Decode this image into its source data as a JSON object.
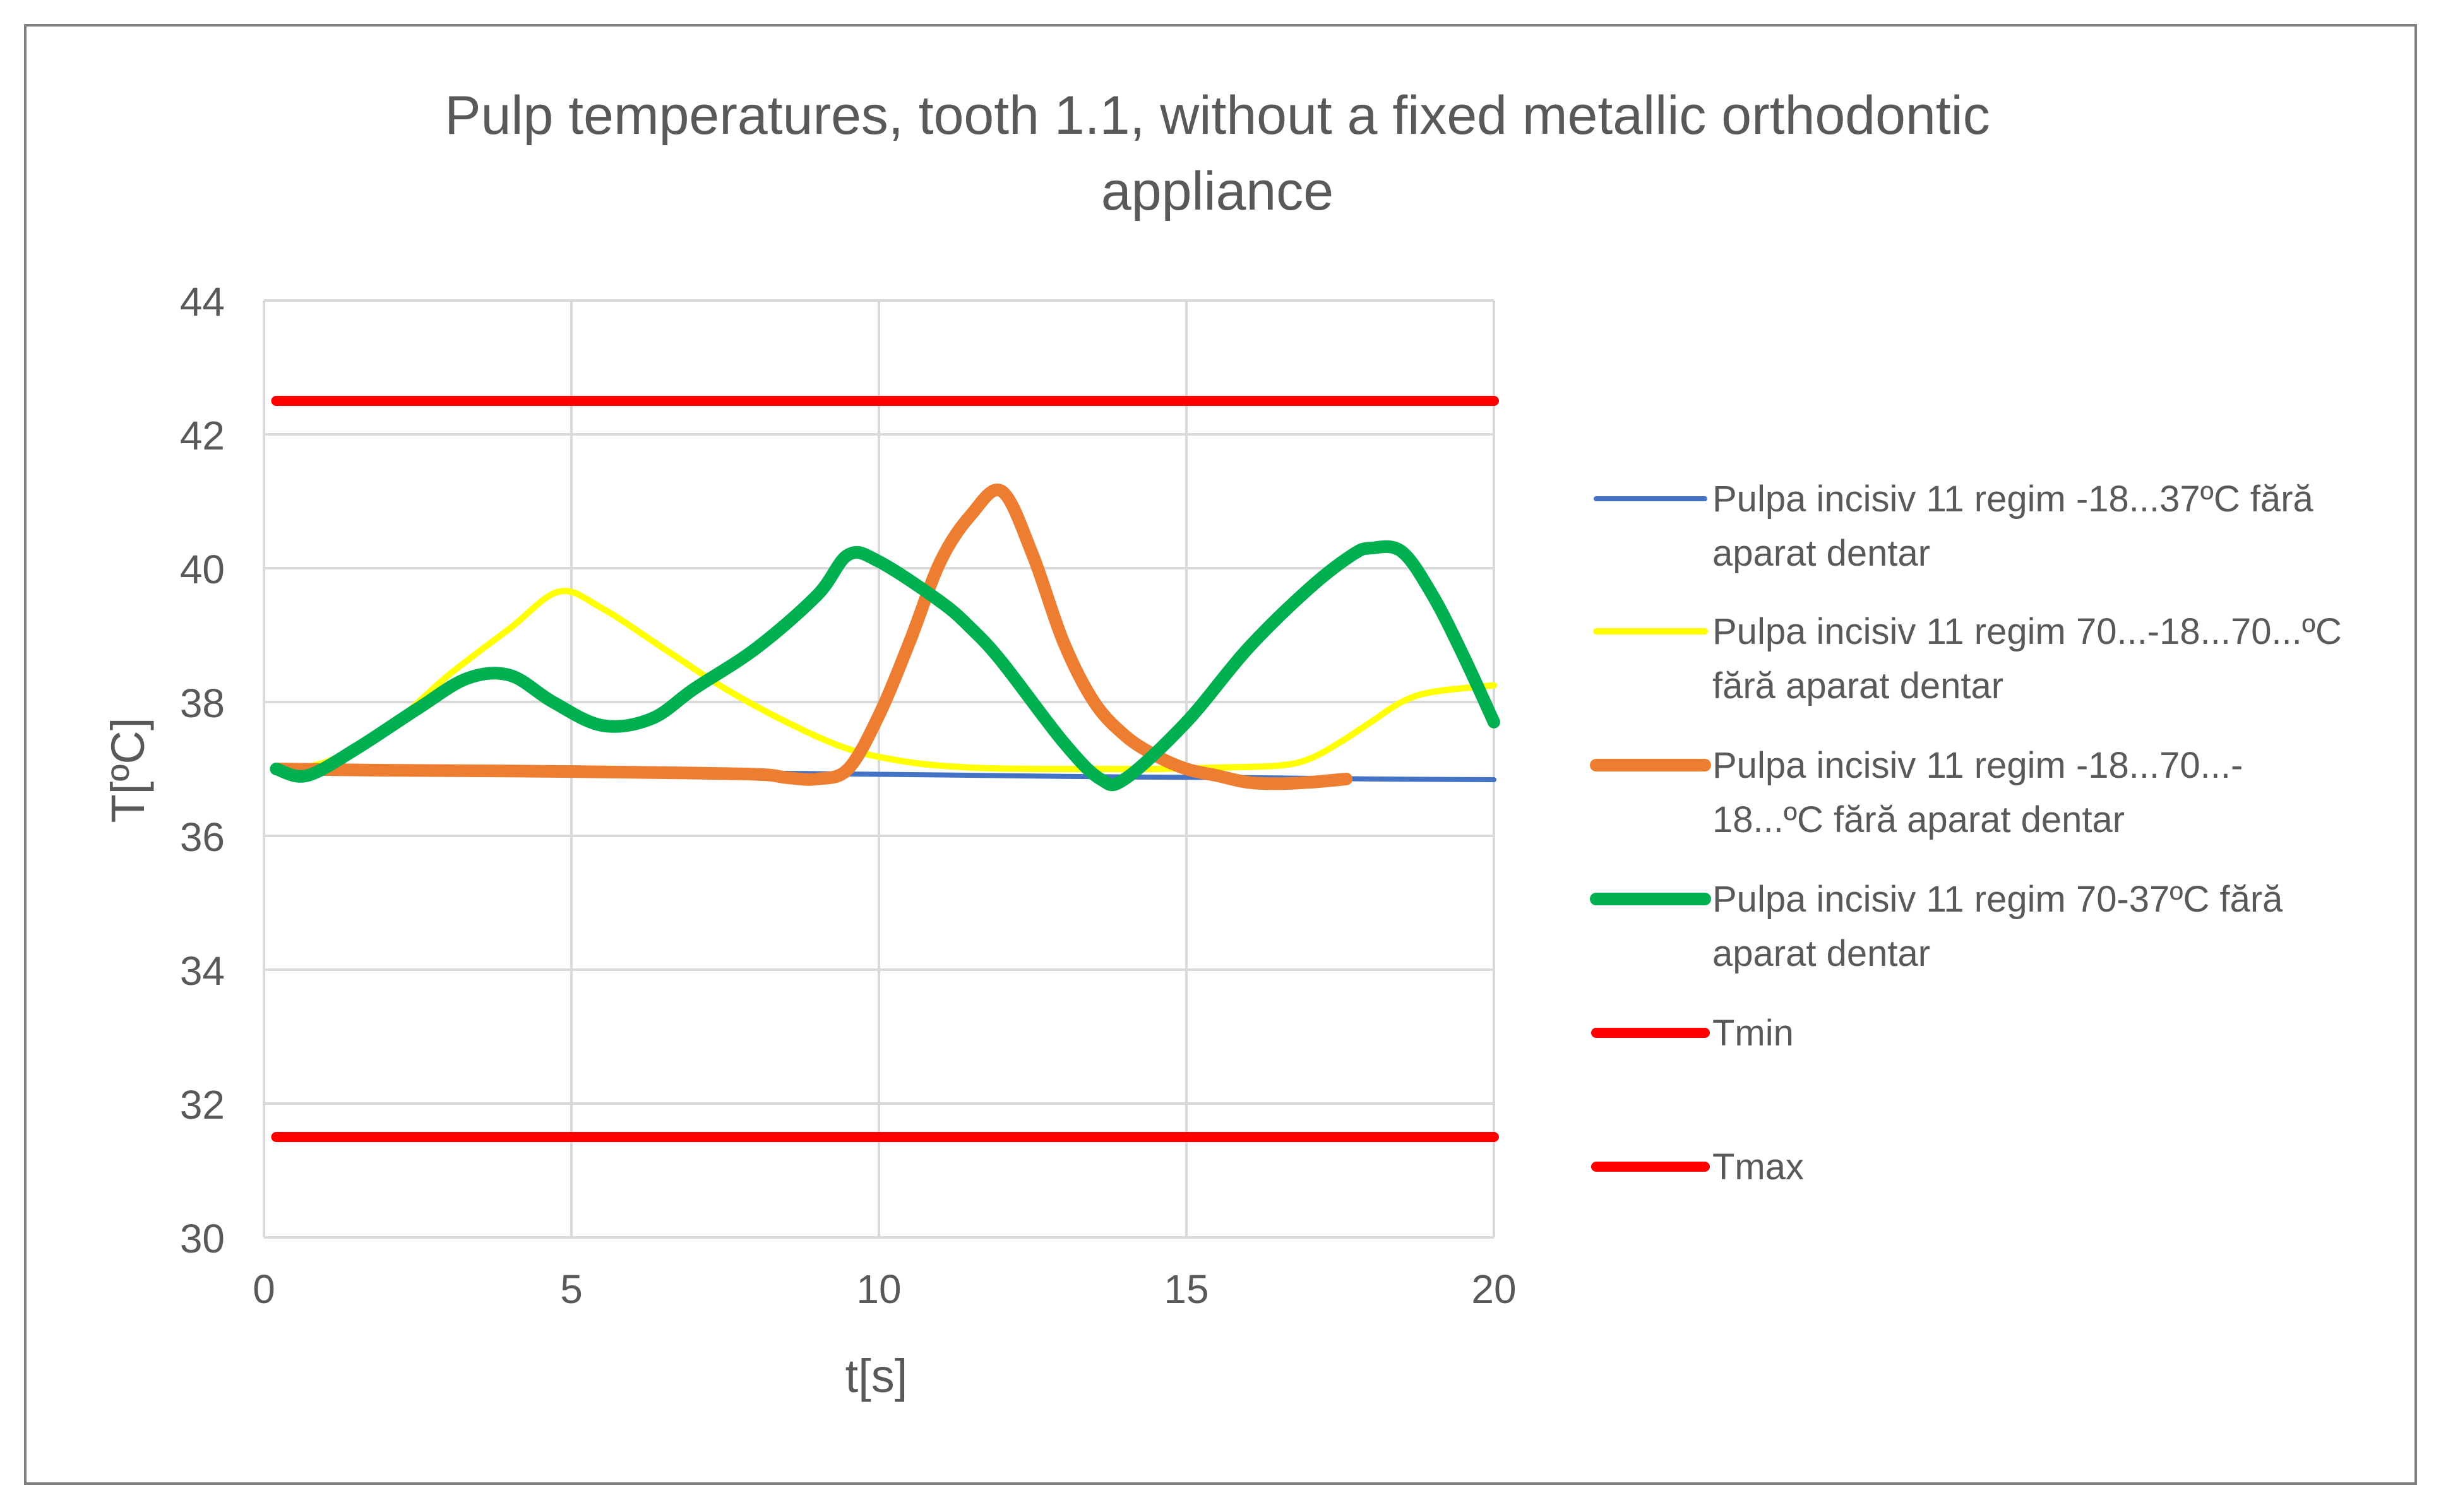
{
  "chart_data": {
    "type": "line",
    "title_lines": [
      "Pulp temperatures, tooth 1.1, without a fixed metallic orthodontic",
      "appliance"
    ],
    "xlabel": "t[s]",
    "ylabel": "T[ºC]",
    "xlim": [
      0,
      20
    ],
    "ylim": [
      30,
      44
    ],
    "xticks": [
      0,
      5,
      10,
      15,
      20
    ],
    "yticks": [
      30,
      32,
      34,
      36,
      38,
      40,
      42,
      44
    ],
    "grid": "vertical-and-horizontal",
    "legend_position": "right",
    "series": [
      {
        "name": "Pulpa incisiv 11 regim -18...37ºC  fără aparat dentar",
        "legend_lines": [
          "Pulpa incisiv 11 regim -18...37ºC  fără",
          "aparat dentar"
        ],
        "color": "#4472C4",
        "x": [
          0.2,
          2,
          4,
          6,
          8,
          10,
          12,
          14,
          16,
          18,
          20
        ],
        "y": [
          37.0,
          36.99,
          36.97,
          36.96,
          36.94,
          36.92,
          36.9,
          36.88,
          36.87,
          36.85,
          36.84
        ]
      },
      {
        "name": "Pulpa incisiv 11 regim 70...-18...70...ºC fără aparat dentar",
        "legend_lines": [
          "Pulpa incisiv 11 regim 70...-18...70...ºC",
          "fără aparat dentar"
        ],
        "color": "#FFFF00",
        "x": [
          0.2,
          1,
          2,
          3,
          4,
          4.8,
          5.5,
          6.5,
          7.5,
          8.5,
          9.5,
          10.5,
          11.5,
          12.5,
          13.5,
          14.5,
          15.5,
          16.5,
          17,
          17.5,
          18,
          18.5,
          19,
          20
        ],
        "y": [
          37.0,
          37.1,
          37.6,
          38.4,
          39.1,
          39.65,
          39.4,
          38.8,
          38.2,
          37.7,
          37.3,
          37.1,
          37.02,
          37.0,
          37.0,
          37.0,
          37.02,
          37.05,
          37.15,
          37.4,
          37.7,
          38.0,
          38.15,
          38.25
        ]
      },
      {
        "name": "Pulpa incisiv 11 regim -18...70...-18...ºC  fără aparat dentar",
        "legend_lines": [
          "Pulpa incisiv 11 regim -18...70...-",
          "18...ºC  fără aparat dentar"
        ],
        "color": "#ED7D31",
        "x": [
          0.2,
          2,
          4,
          6,
          8,
          8.5,
          9,
          9.5,
          10,
          10.5,
          11,
          11.5,
          12,
          12.5,
          13,
          13.5,
          14,
          14.5,
          15,
          15.5,
          16,
          16.5,
          17,
          17.6
        ],
        "y": [
          37.0,
          36.98,
          36.97,
          36.95,
          36.92,
          36.87,
          36.85,
          37.0,
          37.8,
          38.9,
          40.1,
          40.8,
          41.15,
          40.2,
          38.9,
          38.0,
          37.5,
          37.2,
          37.0,
          36.9,
          36.8,
          36.78,
          36.8,
          36.85
        ]
      },
      {
        "name": "Pulpa incisiv 11 regim 70-37ºC fără aparat dentar",
        "legend_lines": [
          "Pulpa incisiv 11 regim 70-37ºC fără",
          "aparat dentar"
        ],
        "color": "#00B050",
        "x": [
          0.2,
          0.7,
          1.5,
          2.5,
          3.3,
          4,
          4.7,
          5.5,
          6.3,
          7,
          8,
          9,
          9.5,
          10,
          11,
          11.5,
          12,
          13,
          13.6,
          14,
          15,
          16,
          17,
          17.7,
          18,
          18.5,
          19,
          19.5,
          20
        ],
        "y": [
          37.0,
          36.9,
          37.3,
          37.9,
          38.35,
          38.4,
          38.0,
          37.65,
          37.75,
          38.2,
          38.8,
          39.6,
          40.2,
          40.1,
          39.5,
          39.1,
          38.6,
          37.4,
          36.85,
          36.85,
          37.7,
          38.8,
          39.7,
          40.2,
          40.3,
          40.25,
          39.6,
          38.7,
          37.7
        ]
      },
      {
        "name": "Tmin",
        "legend_lines": [
          "Tmin"
        ],
        "color": "#FF0000",
        "x": [
          0.2,
          20
        ],
        "y": [
          42.5,
          42.5
        ]
      },
      {
        "name": "Tmax",
        "legend_lines": [
          "Tmax"
        ],
        "color": "#FF0000",
        "x": [
          0.2,
          20
        ],
        "y": [
          31.5,
          31.5
        ]
      }
    ]
  }
}
